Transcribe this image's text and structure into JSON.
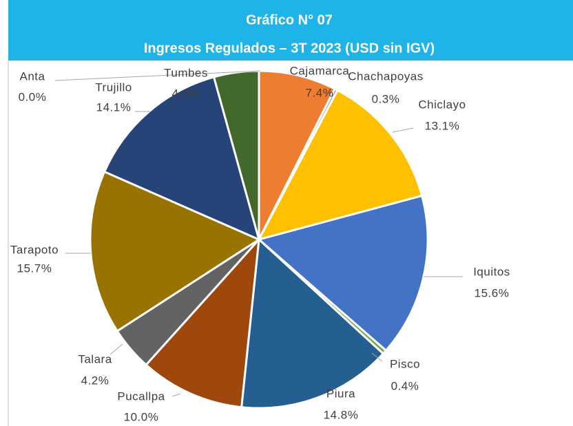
{
  "chart_data": {
    "type": "pie",
    "title": "Gráfico N° 07",
    "subtitle": "Ingresos Regulados – 3T 2023 (USD sin IGV)",
    "categories": [
      "Cajamarca",
      "Chachapoyas",
      "Chiclayo",
      "Iquitos",
      "Pisco",
      "Piura",
      "Pucallpa",
      "Talara",
      "Tarapoto",
      "Trujillo",
      "Tumbes",
      "Anta"
    ],
    "values": [
      7.4,
      0.3,
      13.1,
      15.6,
      0.4,
      14.8,
      10.0,
      4.2,
      15.7,
      14.1,
      4.3,
      0.0
    ],
    "value_labels": [
      "7.4%",
      "0.3%",
      "13.1%",
      "15.6%",
      "0.4%",
      "14.8%",
      "10.0%",
      "4.2%",
      "15.7%",
      "14.1%",
      "4.3%",
      "0.0%"
    ],
    "colors": [
      "#ed7d31",
      "#a5a5a5",
      "#ffc000",
      "#4472c4",
      "#70ad47",
      "#255e91",
      "#9e480e",
      "#636363",
      "#997300",
      "#264478",
      "#43682b",
      "#698ed0"
    ]
  }
}
